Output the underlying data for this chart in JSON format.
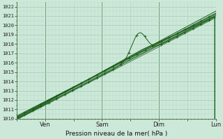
{
  "title": "Pression niveau de la mer( hPa )",
  "background_color": "#cce8d8",
  "grid_color_major": "#a8cbb8",
  "grid_color_minor": "#b8d8c8",
  "line_color": "#1a5c1a",
  "ylim": [
    1010,
    1022.5
  ],
  "yticks": [
    1010,
    1011,
    1012,
    1013,
    1014,
    1015,
    1016,
    1017,
    1018,
    1019,
    1020,
    1021,
    1022
  ],
  "day_labels": [
    "Ven",
    "Sam",
    "Dim",
    "Lun"
  ],
  "day_positions": [
    0.25,
    0.75,
    1.25,
    1.75
  ],
  "xlim": [
    0.0,
    1.75
  ],
  "figsize": [
    3.2,
    2.0
  ],
  "dpi": 100
}
